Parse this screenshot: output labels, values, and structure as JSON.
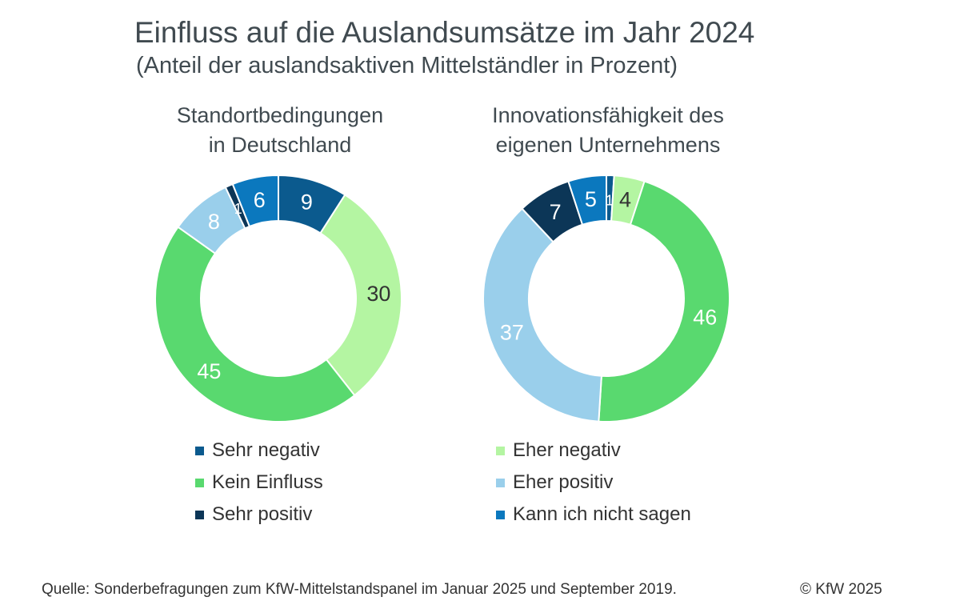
{
  "header": {
    "title": "Einfluss auf die Auslandsumsätze im Jahr 2024",
    "subtitle": "(Anteil der auslandsaktiven Mittelständler in Prozent)"
  },
  "charts": {
    "left": {
      "title_line1": "Standortbedingungen",
      "title_line2": "in Deutschland"
    },
    "right": {
      "title_line1": "Innovationsfähigkeit des",
      "title_line2": "eigenen Unternehmens"
    }
  },
  "chart_data": [
    {
      "type": "pie",
      "title": "Standortbedingungen in Deutschland",
      "categories": [
        "Sehr negativ",
        "Eher negativ",
        "Kein Einfluss",
        "Eher positiv",
        "Sehr positiv",
        "Kann ich nicht sagen"
      ],
      "values": [
        9,
        30,
        45,
        8,
        1,
        6
      ],
      "colors": [
        "#0b5a8e",
        "#b4f5a2",
        "#59d96f",
        "#9acfeb",
        "#0c3657",
        "#0b78be"
      ]
    },
    {
      "type": "pie",
      "title": "Innovationsfähigkeit des eigenen Unternehmens",
      "categories": [
        "Sehr negativ",
        "Eher negativ",
        "Kein Einfluss",
        "Eher positiv",
        "Sehr positiv",
        "Kann ich nicht sagen"
      ],
      "values": [
        1,
        4,
        46,
        37,
        7,
        5
      ],
      "colors": [
        "#0b5a8e",
        "#b4f5a2",
        "#59d96f",
        "#9acfeb",
        "#0c3657",
        "#0b78be"
      ]
    }
  ],
  "legend": {
    "items": [
      {
        "label": "Sehr negativ",
        "color": "#0b5a8e"
      },
      {
        "label": "Eher negativ",
        "color": "#b4f5a2"
      },
      {
        "label": "Kein Einfluss",
        "color": "#59d96f"
      },
      {
        "label": "Eher positiv",
        "color": "#9acfeb"
      },
      {
        "label": "Sehr positiv",
        "color": "#0c3657"
      },
      {
        "label": "Kann ich nicht sagen",
        "color": "#0b78be"
      }
    ]
  },
  "footer": {
    "source": "Quelle: Sonderbefragungen zum KfW-Mittelstandspanel im Januar 2025 und September 2019.",
    "copyright": "© KfW 2025"
  }
}
